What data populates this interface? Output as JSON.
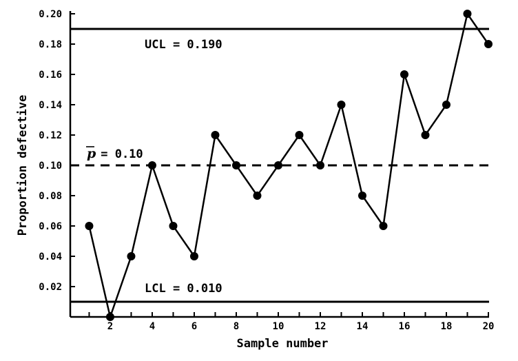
{
  "chart_data": {
    "type": "line",
    "xlabel": "Sample number",
    "ylabel": "Proportion defective",
    "xlim": [
      0.1,
      20
    ],
    "ylim": [
      0.0,
      0.2
    ],
    "x_ticks": [
      2,
      4,
      6,
      8,
      10,
      12,
      14,
      16,
      18,
      20
    ],
    "x_minor_ticks": [
      1,
      3,
      5,
      7,
      9,
      11,
      13,
      15,
      17,
      19
    ],
    "y_ticks": [
      0.02,
      0.04,
      0.06,
      0.08,
      0.1,
      0.12,
      0.14,
      0.16,
      0.18,
      0.2
    ],
    "y_tick_labels": [
      "0.02",
      "0.04",
      "0.06",
      "0.08",
      "0.10",
      "0.12",
      "0.14",
      "0.16",
      "0.18",
      "0.20"
    ],
    "grid": false,
    "series": [
      {
        "x": [
          1,
          2,
          3,
          4,
          5,
          6,
          7,
          8,
          9,
          10,
          11,
          12,
          13,
          14,
          15,
          16,
          17,
          18,
          19,
          20
        ],
        "values": [
          0.06,
          0.0,
          0.04,
          0.1,
          0.06,
          0.04,
          0.12,
          0.1,
          0.08,
          0.1,
          0.12,
          0.1,
          0.14,
          0.08,
          0.06,
          0.16,
          0.12,
          0.14,
          0.2,
          0.18
        ],
        "color": "#000000"
      }
    ],
    "reference_lines": [
      {
        "id": "ucl",
        "value": 0.19,
        "style": "solid",
        "label": "UCL = 0.190"
      },
      {
        "id": "center",
        "value": 0.1,
        "style": "dashed",
        "symbol": "p",
        "label": " = 0.10"
      },
      {
        "id": "lcl",
        "value": 0.01,
        "style": "solid",
        "label": "LCL = 0.010"
      }
    ]
  }
}
